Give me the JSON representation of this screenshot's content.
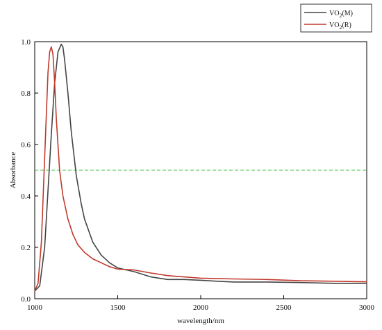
{
  "chart_data": {
    "type": "line",
    "title": "",
    "xlabel": "wavelength/nm",
    "ylabel": "Absorbance",
    "xlim": [
      1000,
      3000
    ],
    "ylim": [
      0.0,
      1.0
    ],
    "x_ticks": [
      1000,
      1500,
      2000,
      2500,
      3000
    ],
    "y_ticks": [
      0.0,
      0.2,
      0.4,
      0.6,
      0.8,
      1.0
    ],
    "x_tick_labels": [
      "1000",
      "1500",
      "2000",
      "2500",
      "3000"
    ],
    "y_tick_labels": [
      "0.0",
      "0.2",
      "0.4",
      "0.6",
      "0.8",
      "1.0"
    ],
    "grid": false,
    "legend_position": "top-right, outside plot",
    "reference_line": {
      "y": 0.5,
      "style": "dashed",
      "color": "#46c246"
    },
    "series": [
      {
        "name_main": "VO",
        "name_sub": "2",
        "name_suffix": "(M)",
        "color": "#444444",
        "x": [
          1000,
          1030,
          1060,
          1080,
          1100,
          1120,
          1140,
          1160,
          1170,
          1180,
          1200,
          1220,
          1250,
          1280,
          1300,
          1350,
          1400,
          1450,
          1500,
          1600,
          1700,
          1800,
          1900,
          2000,
          2100,
          2200,
          2400,
          2600,
          2800,
          3000
        ],
        "y": [
          0.03,
          0.05,
          0.2,
          0.42,
          0.64,
          0.84,
          0.96,
          0.99,
          0.98,
          0.93,
          0.8,
          0.65,
          0.48,
          0.37,
          0.31,
          0.22,
          0.17,
          0.14,
          0.12,
          0.105,
          0.085,
          0.075,
          0.075,
          0.072,
          0.068,
          0.065,
          0.065,
          0.063,
          0.06,
          0.06
        ]
      },
      {
        "name_main": "VO",
        "name_sub": "2",
        "name_suffix": "(R)",
        "color": "#c0392b",
        "x": [
          1000,
          1020,
          1040,
          1060,
          1080,
          1090,
          1100,
          1110,
          1120,
          1130,
          1150,
          1170,
          1200,
          1230,
          1260,
          1300,
          1350,
          1400,
          1450,
          1500,
          1600,
          1700,
          1800,
          1900,
          2000,
          2200,
          2400,
          2600,
          2800,
          3000
        ],
        "y": [
          0.03,
          0.06,
          0.22,
          0.55,
          0.88,
          0.96,
          0.98,
          0.95,
          0.84,
          0.7,
          0.5,
          0.4,
          0.31,
          0.25,
          0.21,
          0.18,
          0.155,
          0.14,
          0.125,
          0.115,
          0.112,
          0.1,
          0.09,
          0.085,
          0.08,
          0.077,
          0.075,
          0.07,
          0.068,
          0.066
        ]
      }
    ]
  }
}
